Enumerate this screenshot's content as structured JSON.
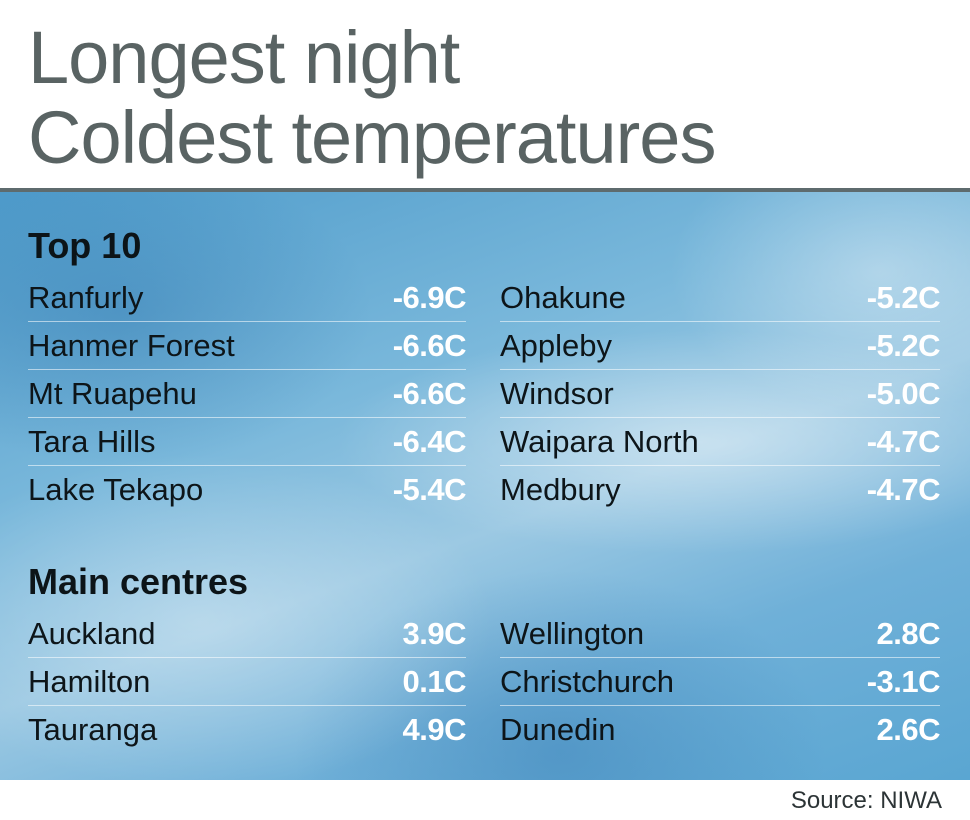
{
  "title": {
    "line1": "Longest night",
    "line2": "Coldest temperatures"
  },
  "top10": {
    "heading": "Top 10",
    "left": [
      {
        "place": "Ranfurly",
        "temp": "-6.9C"
      },
      {
        "place": "Hanmer Forest",
        "temp": "-6.6C"
      },
      {
        "place": "Mt Ruapehu",
        "temp": "-6.6C"
      },
      {
        "place": "Tara Hills",
        "temp": "-6.4C"
      },
      {
        "place": "Lake Tekapo",
        "temp": "-5.4C"
      }
    ],
    "right": [
      {
        "place": "Ohakune",
        "temp": "-5.2C"
      },
      {
        "place": "Appleby",
        "temp": "-5.2C"
      },
      {
        "place": "Windsor",
        "temp": "-5.0C"
      },
      {
        "place": "Waipara North",
        "temp": "-4.7C"
      },
      {
        "place": "Medbury",
        "temp": "-4.7C"
      }
    ]
  },
  "main_centres": {
    "heading": "Main centres",
    "left": [
      {
        "place": "Auckland",
        "temp": "3.9C"
      },
      {
        "place": "Hamilton",
        "temp": "0.1C"
      },
      {
        "place": "Tauranga",
        "temp": "4.9C"
      }
    ],
    "right": [
      {
        "place": "Wellington",
        "temp": "2.8C"
      },
      {
        "place": "Christchurch",
        "temp": "-3.1C"
      },
      {
        "place": "Dunedin",
        "temp": "2.6C"
      }
    ]
  },
  "source": "Source: NIWA",
  "colors": {
    "title": "#596363",
    "temperature_value": "#ffffff",
    "panel_background": "#7ab8db"
  }
}
